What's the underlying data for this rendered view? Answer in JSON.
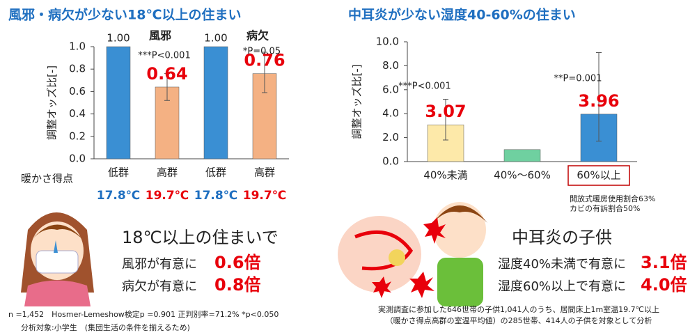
{
  "chart_data": [
    {
      "type": "bar",
      "title": "風邪・病欠が少ない18℃以上の住まい",
      "y_label": "調整オッズ比[-]",
      "x_label": "暖かさ得点",
      "categories": [
        "低群",
        "高群",
        "低群",
        "高群"
      ],
      "groups": [
        "風邪",
        "病欠"
      ],
      "values": [
        1.0,
        0.64,
        1.0,
        0.76
      ],
      "value_labels": [
        "1.00",
        "0.64",
        "1.00",
        "0.76"
      ],
      "ci_low": [
        null,
        0.52,
        null,
        0.59
      ],
      "ci_high": [
        null,
        0.76,
        null,
        0.95
      ],
      "colors": [
        "#3a8fd3",
        "#f4b183",
        "#3a8fd3",
        "#f4b183"
      ],
      "annotations": [
        null,
        "***P<0.001",
        null,
        "*P=0.05"
      ],
      "temperatures": [
        "17.8℃",
        "19.7℃",
        "17.8℃",
        "19.7℃"
      ],
      "temperature_colors": [
        "#1f6fc0",
        "#e8000b",
        "#1f6fc0",
        "#e8000b"
      ],
      "ylim": [
        0,
        1
      ],
      "yticks": [
        {
          "value": 0,
          "label": "0.0"
        },
        {
          "value": 0.2,
          "label": "0.2"
        },
        {
          "value": 0.4,
          "label": "0.4"
        },
        {
          "value": 0.6,
          "label": "0.6"
        },
        {
          "value": 0.8,
          "label": "0.8"
        },
        {
          "value": 1,
          "label": "1.0"
        }
      ]
    },
    {
      "type": "bar",
      "title": "中耳炎が少ない湿度40-60%の住まい",
      "y_label": "調整オッズ比[-]",
      "categories": [
        "40%未満",
        "40%～60%",
        "60%以上"
      ],
      "values": [
        3.07,
        1.0,
        3.96
      ],
      "value_labels": [
        "3.07",
        null,
        "3.96"
      ],
      "ci_low": [
        1.8,
        null,
        1.7
      ],
      "ci_high": [
        5.2,
        null,
        9.1
      ],
      "colors": [
        "#fde9a9",
        "#6fd0a0",
        "#3a8fd3"
      ],
      "annotations": [
        "***P<0.001",
        null,
        "**P=0.001"
      ],
      "notes": [
        "開放式暖房使用割合63%",
        "カビの有訴割合50%"
      ],
      "ylim": [
        0,
        10
      ],
      "yticks": [
        {
          "value": 0,
          "label": "0.0"
        },
        {
          "value": 2,
          "label": "2.0"
        },
        {
          "value": 4,
          "label": "4.0"
        },
        {
          "value": 6,
          "label": "6.0"
        },
        {
          "value": 8,
          "label": "8.0"
        },
        {
          "value": 10,
          "label": "10.0"
        }
      ]
    }
  ],
  "summary_left": {
    "heading": "18℃以上の住まいで",
    "lines": [
      {
        "text": "風邪が有意に",
        "value": "0.6倍"
      },
      {
        "text": "病欠が有意に",
        "value": "0.8倍"
      }
    ]
  },
  "summary_right": {
    "heading": "中耳炎の子供",
    "lines": [
      {
        "text": "湿度40%未満で有意に",
        "value": "3.1倍"
      },
      {
        "text": "湿度60%以上で有意に",
        "value": "4.0倍"
      }
    ]
  },
  "footnotes_left": [
    "n =1,452　Hosmer-Lemeshow検定p =0.901 正判別率=71.2% *p<0.050",
    "分析対象:小学生　(集団生活の条件を揃えるため)"
  ],
  "footnotes_right": [
    "実測調査に参加した646世帯の子供1,041人のうち、居間床上1m室温19.7℃以上",
    "（暖かさ得点高群の室温平均値）の285世帯、414人の子供を対象として分析"
  ]
}
